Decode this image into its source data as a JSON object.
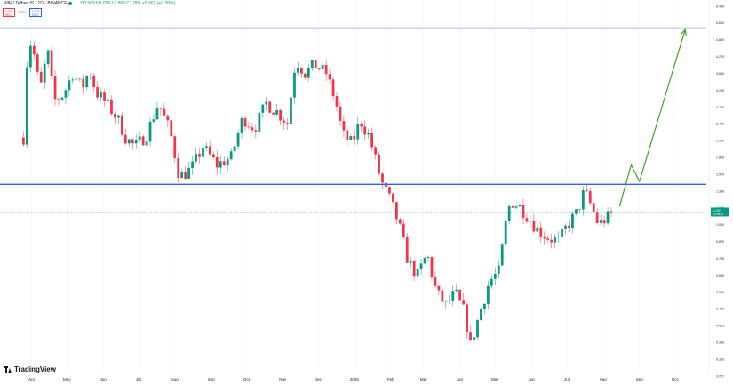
{
  "header": {
    "symbol": "WIF / TetherUS · 1D · BINANCE",
    "ohlc": "O0.999  H1.026  L0.966  C1.001  +0.002 (+0.20%)"
  },
  "badges": {
    "sell_price": "1.000",
    "sell_label": "SELL",
    "spread": "0.001",
    "buy_price": "1.001",
    "buy_label": "BUY"
  },
  "branding": {
    "logo_text": "TradingView"
  },
  "chart_data": {
    "type": "candlestick",
    "symbol": "WIF / TetherUS",
    "timeframe": "1D",
    "exchange": "BINANCE",
    "y_scale": "log",
    "ylim": [
      0.254,
      6.0
    ],
    "y_ticks": [
      "6.400",
      "5.600",
      "4.860",
      "4.270",
      "3.660",
      "3.200",
      "2.770",
      "2.400",
      "2.100",
      "1.820",
      "1.570",
      "1.380",
      "1.150",
      "1.000",
      "0.870",
      "0.755",
      "0.650",
      "0.560",
      "0.490",
      "0.415",
      "0.360",
      "0.310",
      "0.271"
    ],
    "x_ticks": [
      "Apr",
      "May",
      "Jun",
      "Jul",
      "Aug",
      "Sep",
      "Oct",
      "Nov",
      "Dec",
      "2025",
      "Feb",
      "Mar",
      "Apr",
      "May",
      "Jun",
      "Jul",
      "Aug",
      "Sep",
      "Oct"
    ],
    "last_price": "1.001",
    "last_price_countdown": "11:05:11",
    "horizontal_levels": [
      {
        "name": "resistance",
        "value": 4.86,
        "color": "#2962ff"
      },
      {
        "name": "support",
        "value": 1.27,
        "color": "#2962ff"
      }
    ],
    "projection": {
      "color": "#3ea51f",
      "points": [
        [
          "2025-08-15",
          1.05
        ],
        [
          "2025-08-25",
          1.5
        ],
        [
          "2025-09-01",
          1.3
        ],
        [
          "2025-10-10",
          4.8
        ]
      ]
    },
    "anchors": [
      [
        "2024-03-25",
        1.9
      ],
      [
        "2024-03-28",
        3.6
      ],
      [
        "2024-04-01",
        4.5
      ],
      [
        "2024-04-05",
        3.3
      ],
      [
        "2024-04-10",
        2.9
      ],
      [
        "2024-04-14",
        4.2
      ],
      [
        "2024-04-20",
        2.6
      ],
      [
        "2024-04-28",
        2.75
      ],
      [
        "2024-05-06",
        3.3
      ],
      [
        "2024-05-14",
        2.9
      ],
      [
        "2024-05-20",
        3.4
      ],
      [
        "2024-05-26",
        2.8
      ],
      [
        "2024-06-05",
        2.5
      ],
      [
        "2024-06-14",
        2.2
      ],
      [
        "2024-06-20",
        1.9
      ],
      [
        "2024-06-28",
        1.75
      ],
      [
        "2024-07-08",
        1.95
      ],
      [
        "2024-07-18",
        2.55
      ],
      [
        "2024-07-28",
        2.0
      ],
      [
        "2024-08-05",
        1.35
      ],
      [
        "2024-08-15",
        1.45
      ],
      [
        "2024-08-25",
        1.75
      ],
      [
        "2024-09-06",
        1.5
      ],
      [
        "2024-09-18",
        1.6
      ],
      [
        "2024-09-28",
        2.25
      ],
      [
        "2024-10-08",
        2.05
      ],
      [
        "2024-10-18",
        2.55
      ],
      [
        "2024-10-28",
        2.35
      ],
      [
        "2024-11-05",
        2.15
      ],
      [
        "2024-11-12",
        3.7
      ],
      [
        "2024-11-20",
        3.3
      ],
      [
        "2024-11-28",
        3.55
      ],
      [
        "2024-12-08",
        3.3
      ],
      [
        "2024-12-16",
        2.6
      ],
      [
        "2024-12-22",
        1.95
      ],
      [
        "2024-12-30",
        1.8
      ],
      [
        "2025-01-06",
        2.2
      ],
      [
        "2025-01-14",
        1.9
      ],
      [
        "2025-01-24",
        1.3
      ],
      [
        "2025-02-01",
        1.1
      ],
      [
        "2025-02-08",
        0.9
      ],
      [
        "2025-02-16",
        0.65
      ],
      [
        "2025-02-24",
        0.58
      ],
      [
        "2025-03-04",
        0.7
      ],
      [
        "2025-03-12",
        0.5
      ],
      [
        "2025-03-20",
        0.45
      ],
      [
        "2025-03-28",
        0.5
      ],
      [
        "2025-04-05",
        0.42
      ],
      [
        "2025-04-10",
        0.32
      ],
      [
        "2025-04-18",
        0.42
      ],
      [
        "2025-04-26",
        0.55
      ],
      [
        "2025-05-04",
        0.6
      ],
      [
        "2025-05-10",
        0.9
      ],
      [
        "2025-05-14",
        1.1
      ],
      [
        "2025-05-22",
        1.05
      ],
      [
        "2025-05-30",
        0.95
      ],
      [
        "2025-06-07",
        0.85
      ],
      [
        "2025-06-16",
        0.8
      ],
      [
        "2025-06-24",
        0.78
      ],
      [
        "2025-07-02",
        0.9
      ],
      [
        "2025-07-10",
        1.0
      ],
      [
        "2025-07-16",
        1.2
      ],
      [
        "2025-07-22",
        1.05
      ],
      [
        "2025-07-28",
        0.9
      ],
      [
        "2025-08-04",
        0.95
      ],
      [
        "2025-08-10",
        1.0
      ]
    ]
  }
}
